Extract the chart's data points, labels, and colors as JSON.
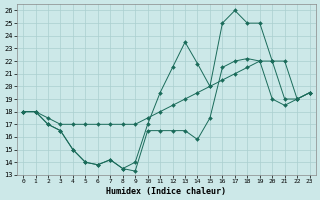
{
  "xlabel": "Humidex (Indice chaleur)",
  "background_color": "#cce8e8",
  "line_color": "#1a6b5a",
  "grid_color": "#aacfcf",
  "xlim_min": -0.5,
  "xlim_max": 23.5,
  "ylim_min": 13,
  "ylim_max": 26.5,
  "xticks": [
    0,
    1,
    2,
    3,
    4,
    5,
    6,
    7,
    8,
    9,
    10,
    11,
    12,
    13,
    14,
    15,
    16,
    17,
    18,
    19,
    20,
    21,
    22,
    23
  ],
  "yticks": [
    13,
    14,
    15,
    16,
    17,
    18,
    19,
    20,
    21,
    22,
    23,
    24,
    25,
    26
  ],
  "line1_x": [
    0,
    1,
    2,
    3,
    4,
    5,
    6,
    7,
    8,
    9,
    10,
    11,
    12,
    13,
    14,
    15,
    16,
    17,
    18,
    19,
    20,
    21,
    22,
    23
  ],
  "line1_y": [
    18,
    18,
    17,
    16.5,
    15,
    14,
    13.8,
    14.2,
    13.5,
    13.3,
    16.5,
    16.5,
    16.5,
    16.5,
    15.8,
    17.5,
    21.5,
    22,
    22.2,
    22,
    19,
    18.5,
    19,
    19.5
  ],
  "line2_x": [
    0,
    1,
    2,
    3,
    4,
    5,
    6,
    7,
    8,
    9,
    10,
    11,
    12,
    13,
    14,
    15,
    16,
    17,
    18,
    19,
    20,
    21,
    22,
    23
  ],
  "line2_y": [
    18,
    18,
    17.5,
    17,
    17,
    17,
    17,
    17,
    17,
    17,
    17.5,
    18,
    18.5,
    19,
    19.5,
    20,
    20.5,
    21,
    21.5,
    22,
    22,
    19,
    19,
    19.5
  ],
  "line3_x": [
    0,
    1,
    2,
    3,
    4,
    5,
    6,
    7,
    8,
    9,
    10,
    11,
    12,
    13,
    14,
    15,
    16,
    17,
    18,
    19,
    20,
    21,
    22,
    23
  ],
  "line3_y": [
    18,
    18,
    17,
    16.5,
    15,
    14,
    13.8,
    14.2,
    13.5,
    14,
    17,
    19.5,
    21.5,
    23.5,
    21.8,
    20,
    25,
    26,
    25,
    25,
    22,
    22,
    19,
    19.5
  ]
}
